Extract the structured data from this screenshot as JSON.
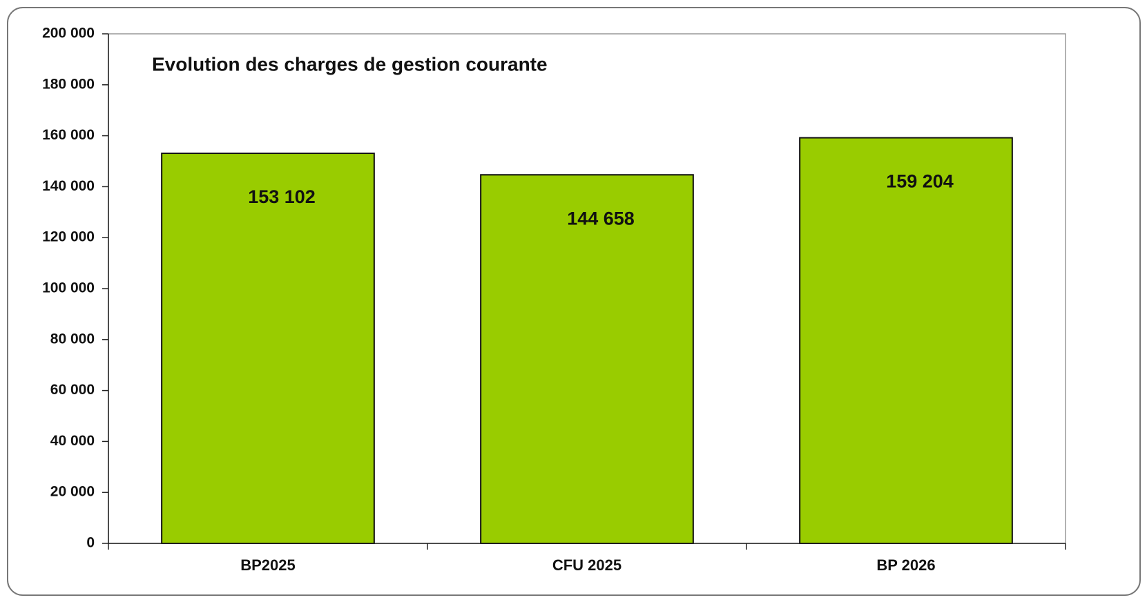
{
  "chart_data": {
    "type": "bar",
    "title": "Evolution des charges de gestion courante",
    "categories": [
      "BP2025",
      "CFU 2025",
      "BP 2026"
    ],
    "values": [
      153102,
      144658,
      159204
    ],
    "value_labels": [
      "153 102",
      "144 658",
      "159 204"
    ],
    "color": "#99cc00",
    "ylim": [
      0,
      200000
    ],
    "yticks": [
      0,
      {
        "value": 20000,
        "label": "20 000"
      },
      {
        "value": 40000,
        "label": "40 000"
      },
      {
        "value": 60000,
        "label": "60 000"
      },
      {
        "value": 80000,
        "label": "80 000"
      },
      {
        "value": 100000,
        "label": "100 000"
      },
      {
        "value": 120000,
        "label": "120 000"
      },
      {
        "value": 140000,
        "label": "140 000"
      },
      {
        "value": 160000,
        "label": "160 000"
      },
      {
        "value": 180000,
        "label": "180 000"
      },
      {
        "value": 200000,
        "label": "200 000"
      }
    ],
    "grid": false
  }
}
